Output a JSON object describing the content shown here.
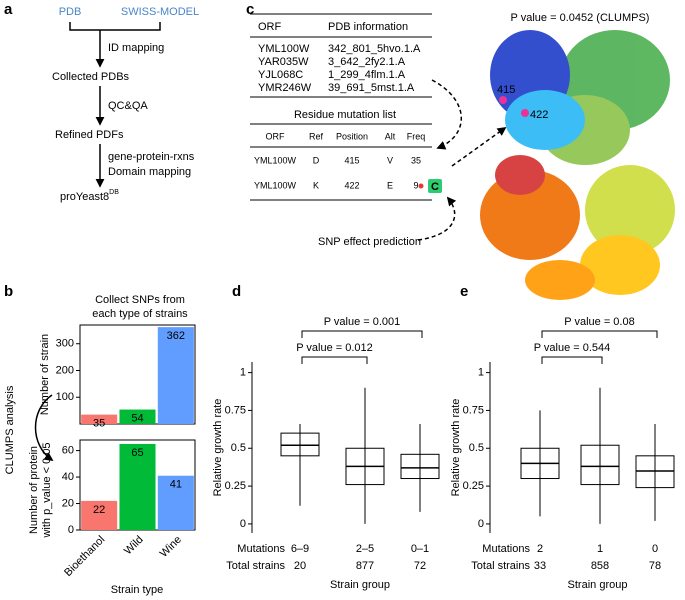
{
  "figure": {
    "panel_letters": [
      "a",
      "b",
      "c",
      "d",
      "e"
    ]
  },
  "workflow": {
    "sources": [
      "PDB",
      "SWISS-MODEL"
    ],
    "nodes": [
      "Collected PDBs",
      "Refined PDFs"
    ],
    "step_labels": [
      [
        "ID mapping"
      ],
      [
        "QC&QA"
      ],
      [
        "gene-protein-rxns",
        "Domain mapping"
      ]
    ],
    "final": {
      "text": "proYeast8",
      "superscript": "DB"
    }
  },
  "structure_panel": {
    "title": "P value = 0.0452 (CLUMPS)",
    "pdb_table": {
      "header": [
        "ORF",
        "PDB information"
      ],
      "rows": [
        [
          "YML100W",
          "342_801_5hvo.1.A"
        ],
        [
          "YAR035W",
          "3_642_2fy2.1.A"
        ],
        [
          "YJL068C",
          "1_299_4flm.1.A"
        ],
        [
          "YMR246W",
          "39_691_5mst.1.A"
        ]
      ]
    },
    "mutation_table": {
      "title": "Residue mutation list",
      "header": [
        "ORF",
        "Ref",
        "Position",
        "Alt",
        "Freq"
      ],
      "rows": [
        [
          "YML100W",
          "D",
          415,
          "V",
          35
        ],
        [
          "YML100W",
          "K",
          422,
          "E",
          9
        ]
      ]
    },
    "prediction_label": "SNP effect prediction",
    "prediction_badge": "C",
    "residue_labels": [
      "415",
      "422"
    ]
  },
  "chart_data": [
    {
      "type": "bar",
      "title_lines": [
        "Collect SNPs from",
        "each type of strains"
      ],
      "categories": [
        "Bioethanol",
        "Wild",
        "Wine"
      ],
      "values": [
        35,
        54,
        362
      ],
      "colors": [
        "#f8766d",
        "#00ba38",
        "#619cff"
      ],
      "ylabel": "Number of strain",
      "ylim": [
        0,
        370
      ],
      "yticks": [
        100,
        200,
        300
      ]
    },
    {
      "type": "bar",
      "categories": [
        "Bioethanol",
        "Wild",
        "Wine"
      ],
      "values": [
        22,
        65,
        41
      ],
      "colors": [
        "#f8766d",
        "#00ba38",
        "#619cff"
      ],
      "ylabel_lines": [
        "Number of protein",
        "with p_value < 0.05"
      ],
      "xlabel": "Strain type",
      "annotation": "CLUMPS analysis",
      "ylim": [
        0,
        68
      ],
      "yticks": [
        0,
        20,
        40,
        60
      ]
    },
    {
      "type": "box",
      "ylabel": "Relative growth rate",
      "xlabel": "Strain group",
      "row_labels": [
        "Mutations",
        "Total strains"
      ],
      "categories": [
        "6–9",
        "2–5",
        "0–1"
      ],
      "total_strains": [
        20,
        877,
        72
      ],
      "whisker_low": [
        0.12,
        0,
        0.08
      ],
      "q1": [
        0.45,
        0.26,
        0.3
      ],
      "median": [
        0.52,
        0.38,
        0.37
      ],
      "q3": [
        0.6,
        0.5,
        0.46
      ],
      "whisker_high": [
        0.66,
        0.9,
        0.66
      ],
      "p_value_labels": [
        "P value = 0.012",
        "P value = 0.001"
      ],
      "ylim": [
        -0.06,
        1.07
      ],
      "yticks": [
        0,
        0.25,
        0.5,
        0.75,
        1
      ]
    },
    {
      "type": "box",
      "ylabel": "Relative growth rate",
      "xlabel": "Strain group",
      "row_labels": [
        "Mutations",
        "Total strains"
      ],
      "categories": [
        "2",
        "1",
        "0"
      ],
      "total_strains": [
        33,
        858,
        78
      ],
      "whisker_low": [
        0.05,
        0,
        0.02
      ],
      "q1": [
        0.3,
        0.26,
        0.24
      ],
      "median": [
        0.4,
        0.38,
        0.35
      ],
      "q3": [
        0.5,
        0.52,
        0.45
      ],
      "whisker_high": [
        0.75,
        0.9,
        0.66
      ],
      "p_value_labels": [
        "P value = 0.544",
        "P value = 0.08"
      ],
      "ylim": [
        -0.06,
        1.07
      ],
      "yticks": [
        0,
        0.25,
        0.5,
        0.75,
        1
      ]
    }
  ]
}
